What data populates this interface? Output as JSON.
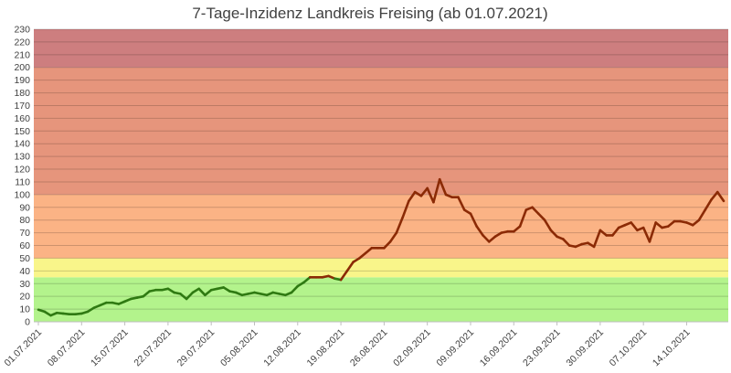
{
  "chart_data": {
    "type": "line",
    "title": "7-Tage-Inzidenz Landkreis Freising (ab 01.07.2021)",
    "xlabel": "",
    "ylabel": "",
    "ylim": [
      0,
      230
    ],
    "yticks": [
      0,
      10,
      20,
      30,
      40,
      50,
      60,
      70,
      80,
      90,
      100,
      110,
      120,
      130,
      140,
      150,
      160,
      170,
      180,
      190,
      200,
      210,
      220,
      230
    ],
    "grid": true,
    "legend": "none",
    "bands": [
      {
        "from": 0,
        "to": 35,
        "color": "#b3f38c"
      },
      {
        "from": 35,
        "to": 50,
        "color": "#f9f58a"
      },
      {
        "from": 50,
        "to": 100,
        "color": "#fbb385"
      },
      {
        "from": 100,
        "to": 200,
        "color": "#e6957c"
      },
      {
        "from": 200,
        "to": 230,
        "color": "#cd7e7f"
      }
    ],
    "line_color": "#8b2a05",
    "line_color_low": "#2f7a12",
    "x_start": "01.07.2021",
    "x_tick_labels": [
      "01.07.2021",
      "08.07.2021",
      "15.07.2021",
      "22.07.2021",
      "29.07.2021",
      "05.08.2021",
      "12.08.2021",
      "19.08.2021",
      "26.08.2021",
      "02.09.2021",
      "09.09.2021",
      "16.09.2021",
      "23.09.2021",
      "30.09.2021",
      "07.10.2021",
      "14.10.2021"
    ],
    "x_tick_step_days": 7,
    "series": [
      {
        "values": [
          9.5,
          8,
          5,
          7,
          6.5,
          6,
          6,
          6.5,
          8,
          11,
          13,
          15,
          15,
          14,
          16,
          18,
          19,
          20,
          24,
          25,
          25,
          26,
          23,
          22,
          18,
          23,
          26,
          21,
          25,
          26,
          27,
          24,
          23,
          21,
          22,
          23,
          22,
          21,
          23,
          22,
          21,
          23,
          28,
          31,
          35,
          35,
          35,
          36,
          34,
          33,
          40,
          47,
          50,
          54,
          58,
          58,
          58,
          63,
          70,
          82,
          95,
          102,
          99,
          105,
          94,
          112,
          100,
          98,
          98,
          88,
          85,
          75,
          68,
          63,
          67,
          70,
          71,
          71,
          75,
          88,
          90,
          85,
          80,
          72,
          67,
          65,
          60,
          59,
          61,
          62,
          59,
          72,
          68,
          68,
          74,
          76,
          78,
          72,
          74,
          63,
          78,
          74,
          75,
          79,
          79,
          78,
          76,
          80,
          88,
          96,
          102,
          95
        ]
      }
    ]
  }
}
